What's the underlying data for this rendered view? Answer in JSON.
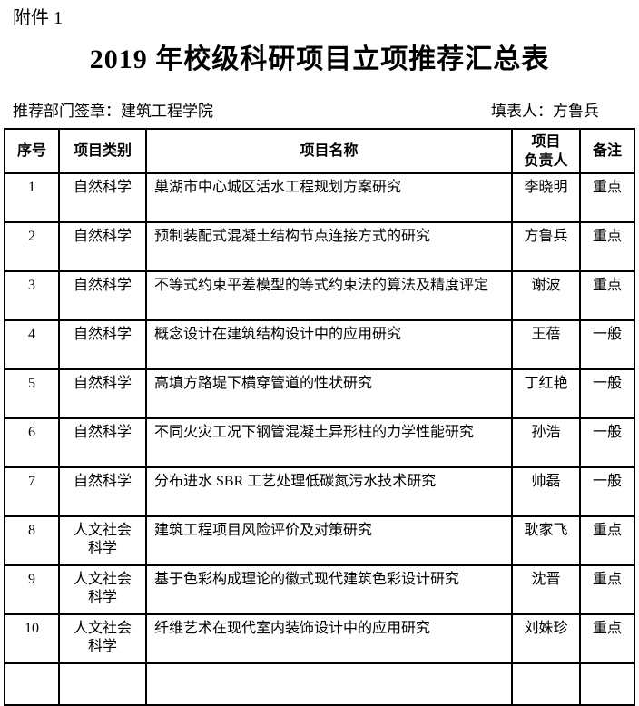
{
  "page": {
    "attachment_label": "附件 1",
    "title": "2019 年校级科研项目立项推荐汇总表",
    "left_field": "推荐部门签章：建筑工程学院",
    "right_field": "填表人：方鲁兵"
  },
  "table": {
    "headers": {
      "seq": "序号",
      "category": "项目类别",
      "name": "项目名称",
      "leader_line1": "项目",
      "leader_line2": "负责人",
      "remark": "备注"
    },
    "rows": [
      {
        "seq": "1",
        "category": "自然科学",
        "name": "巢湖市中心城区活水工程规划方案研究",
        "leader": "李晓明",
        "remark": "重点"
      },
      {
        "seq": "2",
        "category": "自然科学",
        "name": "预制装配式混凝土结构节点连接方式的研究",
        "leader": "方鲁兵",
        "remark": "重点"
      },
      {
        "seq": "3",
        "category": "自然科学",
        "name": "不等式约束平差模型的等式约束法的算法及精度评定",
        "leader": "谢波",
        "remark": "重点"
      },
      {
        "seq": "4",
        "category": "自然科学",
        "name": "概念设计在建筑结构设计中的应用研究",
        "leader": "王蓓",
        "remark": "一般"
      },
      {
        "seq": "5",
        "category": "自然科学",
        "name": "高填方路堤下横穿管道的性状研究",
        "leader": "丁红艳",
        "remark": "一般"
      },
      {
        "seq": "6",
        "category": "自然科学",
        "name": "不同火灾工况下钢管混凝土异形柱的力学性能研究",
        "leader": "孙浩",
        "remark": "一般"
      },
      {
        "seq": "7",
        "category": "自然科学",
        "name": "分布进水 SBR 工艺处理低碳氮污水技术研究",
        "leader": "帅磊",
        "remark": "一般"
      },
      {
        "seq": "8",
        "category": "人文社会科学",
        "name": "建筑工程项目风险评价及对策研究",
        "leader": "耿家飞",
        "remark": "重点"
      },
      {
        "seq": "9",
        "category": "人文社会科学",
        "name": "基于色彩构成理论的徽式现代建筑色彩设计研究",
        "leader": "沈晋",
        "remark": "重点"
      },
      {
        "seq": "10",
        "category": "人文社会科学",
        "name": "纤维艺术在现代室内装饰设计中的应用研究",
        "leader": "刘姝珍",
        "remark": "重点"
      }
    ]
  },
  "colors": {
    "text": "#000000",
    "border": "#000000",
    "background": "#ffffff"
  }
}
